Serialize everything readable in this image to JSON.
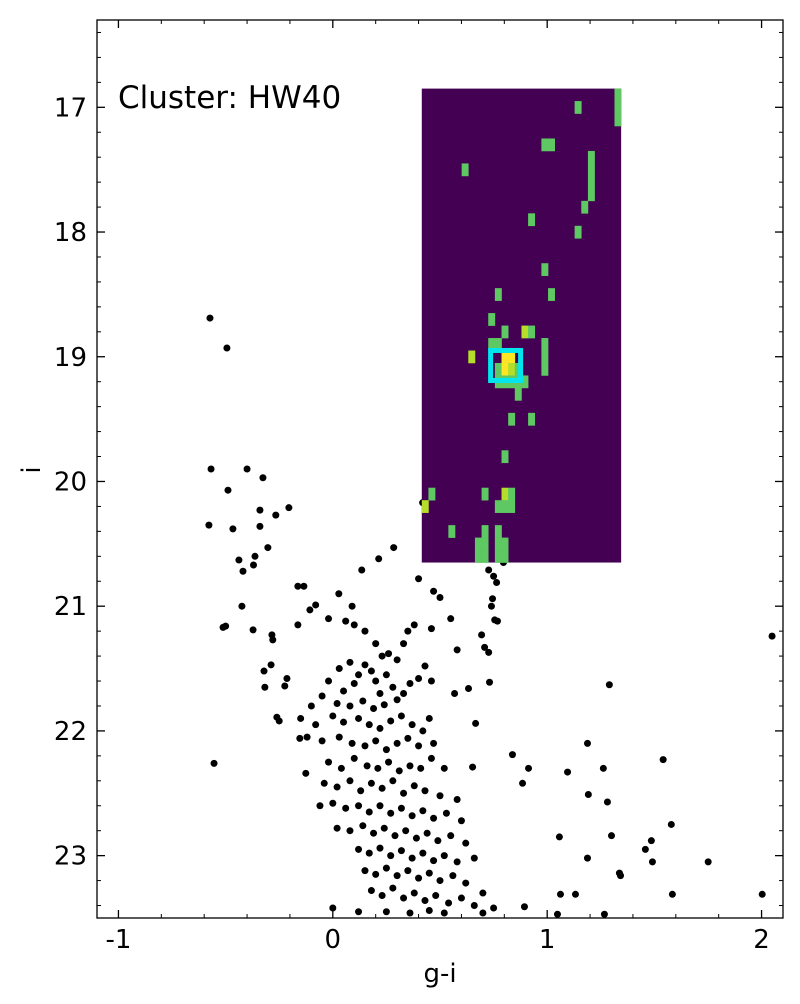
{
  "chart_data": {
    "type": "scatter",
    "annotation": "Cluster: HW40",
    "xlabel": "g-i",
    "ylabel": "i",
    "xlim": [
      -1.1,
      2.1
    ],
    "ylim": [
      16.3,
      23.5
    ],
    "y_inverted": true,
    "xticks": [
      -1,
      0,
      1,
      2
    ],
    "yticks": [
      17,
      18,
      19,
      20,
      21,
      22,
      23
    ],
    "minor_xticks": [
      -0.8,
      -0.6,
      -0.4,
      -0.2,
      0.2,
      0.4,
      0.6,
      0.8,
      1.2,
      1.4,
      1.6,
      1.8
    ],
    "minor_yticks": [
      16.4,
      16.6,
      16.8,
      17.2,
      17.4,
      17.6,
      17.8,
      18.2,
      18.4,
      18.6,
      18.8,
      19.2,
      19.4,
      19.6,
      19.8,
      20.2,
      20.4,
      20.6,
      20.8,
      21.2,
      21.4,
      21.6,
      21.8,
      22.2,
      22.4,
      22.6,
      22.8,
      23.2,
      23.4
    ],
    "color": "#000000",
    "x": [
      -0.573,
      -0.494,
      -0.568,
      -0.4,
      -0.489,
      -0.326,
      -0.205,
      -0.34,
      -0.266,
      -0.578,
      -0.466,
      -0.34,
      -0.303,
      -0.363,
      -0.438,
      -0.419,
      -0.37,
      -0.424,
      -0.512,
      -0.5,
      -0.372,
      -0.284,
      -0.28,
      -0.321,
      -0.288,
      -0.317,
      -0.224,
      -0.214,
      -0.163,
      -0.135,
      -0.107,
      -0.08,
      -0.163,
      -0.261,
      -0.25,
      -0.154,
      -0.554,
      -0.126,
      2.049,
      1.29,
      1.541,
      1.188,
      1.095,
      1.262,
      1.192,
      1.281,
      1.3,
      1.057,
      1.579,
      1.486,
      1.458,
      1.491,
      1.188,
      1.751,
      1.337,
      1.342,
      1.062,
      1.132,
      1.584,
      2.003,
      1.267,
      1.048,
      0.894,
      0.838,
      0.913,
      0.885,
      0.652,
      0.666,
      0.633,
      0.568,
      0.731,
      0.74,
      0.745,
      0.755,
      0.768,
      0.694,
      0.708,
      0.727,
      0.75,
      0.764,
      0.796,
      0.727,
      0.419,
      0.284,
      0.214,
      0.135,
      0.028,
      0.09,
      0.06,
      0.1,
      0.15,
      0.2,
      0.23,
      0.33,
      0.35,
      0.38,
      0.46,
      0.55,
      0.58,
      0.5,
      0.47,
      0.4,
      -0.02,
      0.26,
      0.3,
      0.03,
      0.08,
      0.12,
      0.15,
      0.18,
      0.2,
      0.25,
      0.28,
      0.22,
      0.1,
      0.05,
      -0.02,
      -0.05,
      0.02,
      0.08,
      0.14,
      0.19,
      0.24,
      0.3,
      0.33,
      0.36,
      0.4,
      0.43,
      0.46,
      -0.1,
      -0.15,
      -0.08,
      0.0,
      0.05,
      0.12,
      0.17,
      0.22,
      0.27,
      0.32,
      0.37,
      0.42,
      0.45,
      -0.12,
      -0.05,
      0.03,
      0.09,
      0.15,
      0.2,
      0.25,
      0.3,
      0.35,
      0.4,
      0.47,
      -0.02,
      0.04,
      0.1,
      0.16,
      0.21,
      0.26,
      0.31,
      0.36,
      0.41,
      0.46,
      0.52,
      -0.04,
      0.02,
      0.08,
      0.13,
      0.18,
      0.23,
      0.28,
      0.33,
      0.38,
      0.43,
      0.5,
      0.58,
      -0.06,
      0.0,
      0.06,
      0.12,
      0.17,
      0.22,
      0.27,
      0.32,
      0.37,
      0.42,
      0.47,
      0.53,
      0.6,
      0.02,
      0.08,
      0.14,
      0.19,
      0.24,
      0.29,
      0.34,
      0.39,
      0.44,
      0.49,
      0.55,
      0.62,
      0.12,
      0.17,
      0.22,
      0.27,
      0.32,
      0.37,
      0.42,
      0.47,
      0.52,
      0.58,
      0.66,
      0.15,
      0.2,
      0.25,
      0.3,
      0.35,
      0.4,
      0.45,
      0.5,
      0.56,
      0.62,
      0.7,
      0.18,
      0.23,
      0.28,
      0.33,
      0.38,
      0.43,
      0.48,
      0.54,
      0.6,
      0.66,
      0.75,
      0.0,
      0.12,
      0.25,
      0.36,
      0.45,
      0.52,
      0.7
    ],
    "y": [
      18.69,
      18.93,
      19.9,
      19.9,
      20.07,
      19.97,
      20.21,
      20.23,
      20.27,
      20.35,
      20.38,
      20.36,
      20.53,
      20.6,
      20.63,
      20.72,
      20.67,
      21.0,
      21.17,
      21.16,
      21.19,
      21.23,
      21.27,
      21.52,
      21.47,
      21.65,
      21.64,
      21.58,
      20.84,
      20.84,
      21.03,
      20.99,
      21.15,
      21.89,
      21.92,
      22.06,
      22.26,
      22.34,
      21.24,
      21.63,
      22.23,
      22.1,
      22.33,
      22.3,
      22.51,
      22.57,
      22.84,
      22.85,
      22.75,
      22.88,
      22.95,
      23.05,
      23.02,
      23.05,
      23.14,
      23.16,
      23.31,
      23.31,
      23.31,
      23.31,
      23.47,
      23.47,
      23.41,
      22.19,
      22.3,
      22.42,
      22.29,
      21.94,
      21.66,
      21.7,
      21.61,
      21.0,
      20.94,
      21.11,
      21.12,
      21.23,
      21.33,
      21.37,
      20.76,
      20.81,
      20.65,
      20.71,
      20.17,
      20.53,
      20.62,
      20.71,
      20.9,
      21.0,
      21.12,
      21.15,
      21.2,
      21.3,
      21.4,
      21.3,
      21.2,
      21.15,
      21.18,
      21.1,
      21.35,
      20.93,
      20.88,
      20.78,
      21.1,
      21.38,
      21.43,
      21.5,
      21.45,
      21.55,
      21.47,
      21.52,
      21.6,
      21.55,
      21.65,
      21.7,
      21.62,
      21.68,
      21.6,
      21.72,
      21.78,
      21.8,
      21.76,
      21.82,
      21.79,
      21.75,
      21.7,
      21.62,
      21.58,
      21.48,
      21.6,
      21.8,
      21.9,
      21.95,
      21.88,
      21.93,
      21.9,
      21.95,
      21.98,
      21.92,
      21.88,
      21.95,
      22.0,
      21.9,
      22.05,
      22.08,
      22.05,
      22.1,
      22.12,
      22.08,
      22.15,
      22.1,
      22.06,
      22.12,
      22.1,
      22.25,
      22.3,
      22.22,
      22.28,
      22.3,
      22.25,
      22.32,
      22.28,
      22.3,
      22.22,
      22.3,
      22.42,
      22.45,
      22.4,
      22.48,
      22.42,
      22.46,
      22.4,
      22.5,
      22.44,
      22.48,
      22.52,
      22.55,
      22.6,
      22.58,
      22.62,
      22.6,
      22.65,
      22.6,
      22.66,
      22.62,
      22.68,
      22.64,
      22.7,
      22.66,
      22.72,
      22.78,
      22.8,
      22.76,
      22.82,
      22.78,
      22.84,
      22.8,
      22.86,
      22.82,
      22.88,
      22.84,
      22.9,
      22.95,
      22.98,
      22.94,
      23.0,
      22.96,
      23.02,
      22.98,
      23.04,
      23.0,
      23.05,
      23.02,
      23.12,
      23.15,
      23.1,
      23.16,
      23.12,
      23.18,
      23.14,
      23.2,
      23.16,
      23.22,
      23.3,
      23.28,
      23.32,
      23.26,
      23.34,
      23.3,
      23.36,
      23.32,
      23.38,
      23.34,
      23.4,
      23.42,
      23.42,
      23.45,
      23.45,
      23.46,
      23.44,
      23.46,
      23.46
    ],
    "heatmap": {
      "xlim": [
        0.415,
        1.345
      ],
      "ylim": [
        16.85,
        20.65
      ],
      "nx": 30,
      "ny": 38,
      "colors": [
        "#440154",
        "#5ec962",
        "#b5de2b",
        "#fde725"
      ],
      "cells": [
        [
          29,
          0,
          1
        ],
        [
          29,
          1,
          1
        ],
        [
          29,
          2,
          1
        ],
        [
          23,
          1,
          1
        ],
        [
          18,
          4,
          1
        ],
        [
          19,
          4,
          1
        ],
        [
          25,
          5,
          1
        ],
        [
          25,
          6,
          1
        ],
        [
          25,
          7,
          1
        ],
        [
          25,
          8,
          1
        ],
        [
          6,
          6,
          1
        ],
        [
          24,
          9,
          1
        ],
        [
          16,
          10,
          1
        ],
        [
          23,
          11,
          1
        ],
        [
          18,
          14,
          1
        ],
        [
          11,
          16,
          1
        ],
        [
          19,
          16,
          1
        ],
        [
          10,
          18,
          1
        ],
        [
          12,
          19,
          1
        ],
        [
          15,
          19,
          2
        ],
        [
          16,
          19,
          1
        ],
        [
          10,
          20,
          1
        ],
        [
          11,
          20,
          1
        ],
        [
          18,
          20,
          1
        ],
        [
          7,
          21,
          2
        ],
        [
          12,
          21,
          3
        ],
        [
          13,
          21,
          3
        ],
        [
          18,
          21,
          1
        ],
        [
          11,
          22,
          1
        ],
        [
          12,
          22,
          3
        ],
        [
          13,
          22,
          2
        ],
        [
          14,
          22,
          1
        ],
        [
          18,
          22,
          1
        ],
        [
          11,
          23,
          1
        ],
        [
          12,
          23,
          1
        ],
        [
          13,
          23,
          1
        ],
        [
          14,
          23,
          1
        ],
        [
          15,
          23,
          1
        ],
        [
          14,
          24,
          1
        ],
        [
          13,
          26,
          1
        ],
        [
          16,
          26,
          1
        ],
        [
          12,
          29,
          1
        ],
        [
          1,
          32,
          1
        ],
        [
          9,
          32,
          1
        ],
        [
          12,
          32,
          2
        ],
        [
          13,
          32,
          1
        ],
        [
          0,
          33,
          2
        ],
        [
          11,
          33,
          1
        ],
        [
          12,
          33,
          1
        ],
        [
          13,
          33,
          1
        ],
        [
          4,
          35,
          1
        ],
        [
          9,
          35,
          1
        ],
        [
          11,
          35,
          1
        ],
        [
          8,
          36,
          1
        ],
        [
          9,
          36,
          1
        ],
        [
          11,
          36,
          1
        ],
        [
          12,
          36,
          1
        ],
        [
          8,
          37,
          1
        ],
        [
          9,
          37,
          1
        ],
        [
          11,
          37,
          1
        ],
        [
          12,
          37,
          1
        ]
      ]
    },
    "highlight": {
      "x": 0.806,
      "y": 19.07,
      "color": "#00e5ee"
    }
  }
}
